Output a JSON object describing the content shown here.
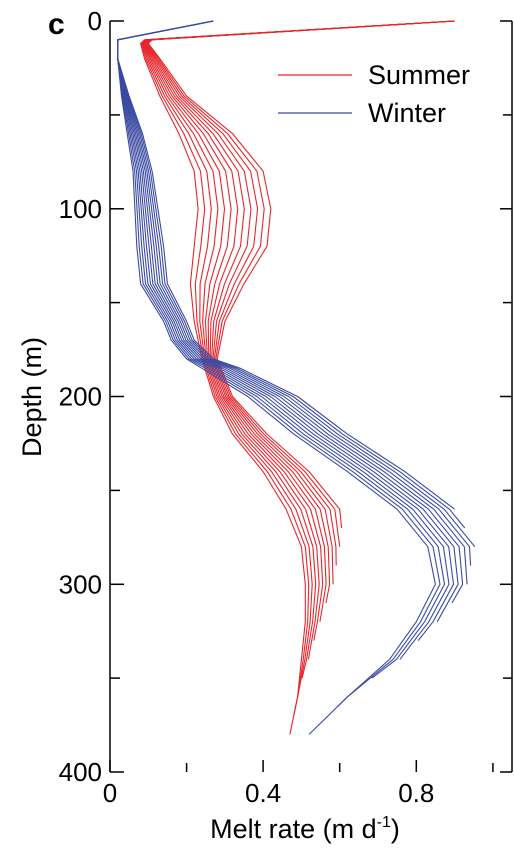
{
  "chart_data": {
    "type": "line",
    "panel_label": "c",
    "xlabel_main": "Melt rate (m d",
    "xlabel_sup": "-1",
    "xlabel_end": ")",
    "ylabel": "Depth (m)",
    "xlim": [
      0,
      1.05
    ],
    "ylim": [
      400,
      0
    ],
    "xticks": [
      0,
      0.4,
      0.8
    ],
    "xtick_labels": [
      "0",
      "0.4",
      "0.8"
    ],
    "yticks": [
      0,
      100,
      200,
      300,
      400
    ],
    "ytick_labels": [
      "0",
      "100",
      "200",
      "300",
      "400"
    ],
    "legend_position": "top-right",
    "series_count_per_group": 12,
    "series": [
      {
        "name": "Summer",
        "color": "#e8252a",
        "base_depth": [
          0,
          10,
          12,
          20,
          40,
          60,
          80,
          100,
          120,
          140,
          160,
          180,
          200,
          220,
          240,
          260,
          280,
          300,
          320,
          340,
          360,
          380
        ],
        "base_melt": [
          0.9,
          0.09,
          0.08,
          0.09,
          0.13,
          0.18,
          0.22,
          0.23,
          0.22,
          0.21,
          0.22,
          0.24,
          0.27,
          0.32,
          0.4,
          0.46,
          0.5,
          0.51,
          0.51,
          0.5,
          0.49,
          0.47
        ],
        "shift_max": [
          0,
          0.02,
          0.02,
          0.04,
          0.07,
          0.14,
          0.18,
          0.19,
          0.19,
          0.14,
          0.08,
          0.04,
          0.05,
          0.09,
          0.12,
          0.14,
          0.11,
          0.1,
          0.07,
          0.05,
          0.0,
          0.0
        ],
        "end_depth": [
          380,
          370,
          360,
          350,
          340,
          330,
          320,
          310,
          300,
          290,
          280,
          270
        ]
      },
      {
        "name": "Winter",
        "color": "#3a4aa3",
        "base_depth": [
          0,
          10,
          20,
          40,
          60,
          80,
          100,
          120,
          140,
          160,
          170,
          180,
          185,
          200,
          220,
          240,
          260,
          280,
          300,
          320,
          340,
          360,
          380
        ],
        "base_melt": [
          0.27,
          0.02,
          0.02,
          0.03,
          0.045,
          0.06,
          0.065,
          0.07,
          0.08,
          0.14,
          0.16,
          0.2,
          0.24,
          0.36,
          0.48,
          0.62,
          0.75,
          0.83,
          0.85,
          0.8,
          0.73,
          0.62,
          0.52
        ],
        "shift_max": [
          0,
          0.0,
          0.0,
          0.02,
          0.04,
          0.05,
          0.06,
          0.07,
          0.07,
          0.06,
          0.06,
          0.07,
          0.1,
          0.13,
          0.14,
          0.15,
          0.15,
          0.15,
          0.13,
          0.12,
          0.1,
          0.0,
          0.0
        ],
        "end_depth": [
          380,
          365,
          350,
          340,
          330,
          320,
          310,
          300,
          290,
          280,
          270,
          260
        ]
      }
    ]
  }
}
